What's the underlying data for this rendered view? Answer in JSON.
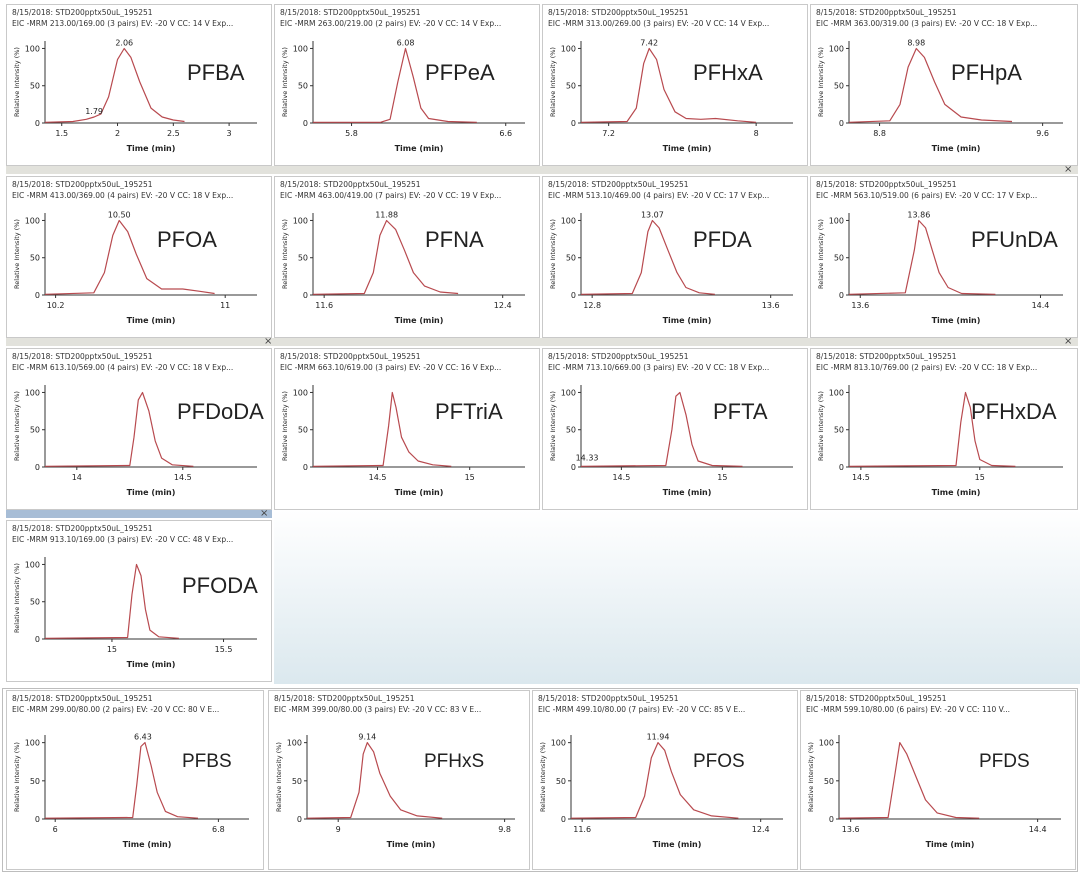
{
  "common": {
    "ylabel": "Relative Intensity (%)",
    "xlabel": "Time (min)",
    "close_symbol": "×",
    "line_color": "#b84a4f",
    "axis_color": "#333333"
  },
  "chart_data": [
    {
      "type": "line",
      "name": "PFBA",
      "title": "8/15/2018: STD200pptx50uL_195251",
      "subtitle": "EIC -MRM 213.00/169.00 (3 pairs) EV: -20 V CC: 14 V Exp...",
      "xlim": [
        1.35,
        3.25
      ],
      "ylim": [
        0,
        110
      ],
      "xticks": [
        "1.5",
        "2",
        "2.5",
        "3"
      ],
      "yticks": [
        "0",
        "50",
        "100"
      ],
      "peaks": [
        {
          "rt": 2.06,
          "label": "2.06",
          "w": 0.16
        },
        {
          "rt": 1.79,
          "label": "1.79",
          "w": 0.1,
          "h": 0.08
        }
      ],
      "x": [
        1.35,
        1.6,
        1.72,
        1.79,
        1.85,
        1.92,
        2.0,
        2.06,
        2.12,
        2.2,
        2.3,
        2.4,
        2.5,
        2.6
      ],
      "values": [
        1,
        2,
        5,
        8,
        12,
        35,
        85,
        100,
        88,
        55,
        20,
        8,
        4,
        2
      ]
    },
    {
      "type": "line",
      "name": "PFPeA",
      "title": "8/15/2018: STD200pptx50uL_195251",
      "subtitle": "EIC -MRM 263.00/219.00 (2 pairs) EV: -20 V CC: 14 V Exp...",
      "xlim": [
        5.6,
        6.7
      ],
      "ylim": [
        0,
        110
      ],
      "xticks": [
        "5.8",
        "6.6"
      ],
      "yticks": [
        "0",
        "50",
        "100"
      ],
      "peaks": [
        {
          "rt": 6.08,
          "label": "6.08"
        }
      ],
      "x": [
        5.6,
        5.95,
        6.0,
        6.04,
        6.08,
        6.12,
        6.16,
        6.2,
        6.3,
        6.45
      ],
      "values": [
        1,
        1,
        5,
        55,
        100,
        62,
        20,
        6,
        2,
        1
      ]
    },
    {
      "type": "line",
      "name": "PFHxA",
      "title": "8/15/2018: STD200pptx50uL_195251",
      "subtitle": "EIC -MRM 313.00/269.00 (3 pairs) EV: -20 V CC: 14 V Exp...",
      "xlim": [
        7.05,
        8.2
      ],
      "ylim": [
        0,
        110
      ],
      "xticks": [
        "7.2",
        "8"
      ],
      "yticks": [
        "0",
        "50",
        "100"
      ],
      "peaks": [
        {
          "rt": 7.42,
          "label": "7.42"
        }
      ],
      "x": [
        7.05,
        7.3,
        7.35,
        7.39,
        7.42,
        7.46,
        7.5,
        7.56,
        7.62,
        7.7,
        7.78,
        7.9,
        8.0
      ],
      "values": [
        1,
        2,
        20,
        80,
        100,
        85,
        45,
        15,
        6,
        5,
        6,
        3,
        1
      ]
    },
    {
      "type": "line",
      "name": "PFHpA",
      "title": "8/15/2018: STD200pptx50uL_195251",
      "subtitle": "EIC -MRM 363.00/319.00 (3 pairs) EV: -20 V CC: 18 V Exp...",
      "xlim": [
        8.65,
        9.7
      ],
      "ylim": [
        0,
        110
      ],
      "xticks": [
        "8.8",
        "9.6"
      ],
      "yticks": [
        "0",
        "50",
        "100"
      ],
      "peaks": [
        {
          "rt": 8.98,
          "label": "8.98"
        }
      ],
      "x": [
        8.65,
        8.85,
        8.9,
        8.94,
        8.98,
        9.02,
        9.07,
        9.12,
        9.2,
        9.3,
        9.45
      ],
      "values": [
        1,
        3,
        25,
        75,
        100,
        88,
        55,
        25,
        8,
        4,
        2
      ]
    },
    {
      "type": "line",
      "name": "PFOA",
      "title": "8/15/2018: STD200pptx50uL_195251",
      "subtitle": "EIC -MRM 413.00/369.00 (4 pairs) EV: -20 V CC: 18 V Exp...",
      "xlim": [
        10.15,
        11.15
      ],
      "ylim": [
        0,
        110
      ],
      "xticks": [
        "10.2",
        "11"
      ],
      "yticks": [
        "0",
        "50",
        "100"
      ],
      "peaks": [
        {
          "rt": 10.5,
          "label": "10.50"
        }
      ],
      "x": [
        10.15,
        10.38,
        10.43,
        10.47,
        10.5,
        10.54,
        10.58,
        10.63,
        10.7,
        10.8,
        10.88,
        10.95
      ],
      "values": [
        1,
        3,
        30,
        80,
        100,
        85,
        55,
        22,
        8,
        8,
        5,
        2
      ]
    },
    {
      "type": "line",
      "name": "PFNA",
      "title": "8/15/2018: STD200pptx50uL_195251",
      "subtitle": "EIC -MRM 463.00/419.00 (7 pairs) EV: -20 V CC: 19 V Exp...",
      "xlim": [
        11.55,
        12.5
      ],
      "ylim": [
        0,
        110
      ],
      "xticks": [
        "11.6",
        "12.4"
      ],
      "yticks": [
        "0",
        "50",
        "100"
      ],
      "peaks": [
        {
          "rt": 11.88,
          "label": "11.88"
        }
      ],
      "x": [
        11.55,
        11.78,
        11.82,
        11.85,
        11.88,
        11.92,
        11.96,
        12.0,
        12.05,
        12.12,
        12.2
      ],
      "values": [
        1,
        2,
        30,
        80,
        100,
        88,
        60,
        30,
        12,
        4,
        2
      ]
    },
    {
      "type": "line",
      "name": "PFDA",
      "title": "8/15/2018: STD200pptx50uL_195251",
      "subtitle": "EIC -MRM 513.10/469.00 (4 pairs) EV: -20 V CC: 17 V Exp...",
      "xlim": [
        12.75,
        13.7
      ],
      "ylim": [
        0,
        110
      ],
      "xticks": [
        "12.8",
        "13.6"
      ],
      "yticks": [
        "0",
        "50",
        "100"
      ],
      "peaks": [
        {
          "rt": 13.07,
          "label": "13.07"
        }
      ],
      "x": [
        12.75,
        12.98,
        13.02,
        13.05,
        13.07,
        13.1,
        13.14,
        13.18,
        13.22,
        13.28,
        13.35
      ],
      "values": [
        1,
        2,
        30,
        85,
        100,
        90,
        60,
        30,
        10,
        3,
        1
      ]
    },
    {
      "type": "line",
      "name": "PFUnDA",
      "title": "8/15/2018: STD200pptx50uL_195251",
      "subtitle": "EIC -MRM 563.10/519.00 (6 pairs) EV: -20 V CC: 17 V Exp...",
      "xlim": [
        13.55,
        14.5
      ],
      "ylim": [
        0,
        110
      ],
      "xticks": [
        "13.6",
        "14.4"
      ],
      "yticks": [
        "0",
        "50",
        "100"
      ],
      "peaks": [
        {
          "rt": 13.86,
          "label": "13.86"
        }
      ],
      "x": [
        13.55,
        13.8,
        13.84,
        13.86,
        13.89,
        13.92,
        13.95,
        13.99,
        14.05,
        14.2
      ],
      "values": [
        1,
        3,
        60,
        100,
        90,
        60,
        30,
        10,
        2,
        1
      ]
    },
    {
      "type": "line",
      "name": "PFDoDA",
      "title": "8/15/2018: STD200pptx50uL_195251",
      "subtitle": "EIC -MRM 613.10/569.00 (4 pairs) EV: -20 V CC: 18 V Exp...",
      "xlim": [
        13.85,
        14.85
      ],
      "ylim": [
        0,
        110
      ],
      "xticks": [
        "14",
        "14.5"
      ],
      "yticks": [
        "0",
        "50",
        "100"
      ],
      "peaks": [
        {
          "rt": 14.3,
          "label": ""
        }
      ],
      "x": [
        13.85,
        14.25,
        14.27,
        14.29,
        14.31,
        14.34,
        14.37,
        14.4,
        14.45,
        14.55
      ],
      "values": [
        1,
        2,
        40,
        90,
        100,
        75,
        35,
        12,
        3,
        1
      ]
    },
    {
      "type": "line",
      "name": "PFTriA",
      "title": "8/15/2018: STD200pptx50uL_195251",
      "subtitle": "EIC -MRM 663.10/619.00 (3 pairs) EV: -20 V CC: 16 V Exp...",
      "xlim": [
        14.15,
        15.3
      ],
      "ylim": [
        0,
        110
      ],
      "xticks": [
        "14.5",
        "15"
      ],
      "yticks": [
        "0",
        "50",
        "100"
      ],
      "peaks": [
        {
          "rt": 14.58,
          "label": ""
        }
      ],
      "x": [
        14.15,
        14.53,
        14.56,
        14.58,
        14.6,
        14.63,
        14.67,
        14.72,
        14.8,
        14.9
      ],
      "values": [
        1,
        2,
        55,
        100,
        80,
        40,
        20,
        8,
        3,
        1
      ]
    },
    {
      "type": "line",
      "name": "PFTA",
      "title": "8/15/2018: STD200pptx50uL_195251",
      "subtitle": "EIC -MRM 713.10/669.00 (3 pairs) EV: -20 V CC: 18 V Exp...",
      "xlim": [
        14.3,
        15.35
      ],
      "ylim": [
        0,
        110
      ],
      "xticks": [
        "14.5",
        "15"
      ],
      "yticks": [
        "0",
        "50",
        "100"
      ],
      "peaks": [
        {
          "rt": 14.78,
          "label": ""
        },
        {
          "rt": 14.33,
          "label": "14.33",
          "h": 0.05
        }
      ],
      "x": [
        14.3,
        14.72,
        14.75,
        14.77,
        14.79,
        14.82,
        14.85,
        14.88,
        14.95,
        15.1
      ],
      "values": [
        1,
        2,
        50,
        95,
        100,
        70,
        30,
        8,
        2,
        1
      ]
    },
    {
      "type": "line",
      "name": "PFHxDA",
      "title": "8/15/2018: STD200pptx50uL_195251",
      "subtitle": "EIC -MRM 813.10/769.00 (2 pairs) EV: -20 V CC: 18 V Exp...",
      "xlim": [
        14.45,
        15.35
      ],
      "ylim": [
        0,
        110
      ],
      "xticks": [
        "14.5",
        "15"
      ],
      "yticks": [
        "0",
        "50",
        "100"
      ],
      "peaks": [
        {
          "rt": 14.93,
          "label": ""
        }
      ],
      "x": [
        14.45,
        14.9,
        14.92,
        14.94,
        14.96,
        14.98,
        15.0,
        15.05,
        15.15
      ],
      "values": [
        1,
        2,
        60,
        100,
        80,
        35,
        10,
        2,
        1
      ]
    },
    {
      "type": "line",
      "name": "PFODA",
      "title": "8/15/2018: STD200pptx50uL_195251",
      "subtitle": "EIC -MRM 913.10/169.00 (3 pairs) EV: -20 V CC: 48 V Exp...",
      "xlim": [
        14.7,
        15.65
      ],
      "ylim": [
        0,
        110
      ],
      "xticks": [
        "15",
        "15.5"
      ],
      "yticks": [
        "0",
        "50",
        "100"
      ],
      "peaks": [
        {
          "rt": 15.11,
          "label": ""
        }
      ],
      "x": [
        14.7,
        15.07,
        15.09,
        15.11,
        15.13,
        15.15,
        15.17,
        15.21,
        15.3
      ],
      "values": [
        1,
        2,
        60,
        100,
        85,
        40,
        12,
        3,
        1
      ]
    },
    {
      "type": "line",
      "name": "PFBS",
      "title": "8/15/2018: STD200pptx50uL_195251",
      "subtitle": "EIC -MRM 299.00/80.00 (2 pairs) EV: -20 V CC: 80 V E...",
      "xlim": [
        5.95,
        6.95
      ],
      "ylim": [
        0,
        110
      ],
      "xticks": [
        "6",
        "6.8"
      ],
      "yticks": [
        "0",
        "50",
        "100"
      ],
      "peaks": [
        {
          "rt": 6.43,
          "label": "6.43"
        }
      ],
      "x": [
        5.95,
        6.38,
        6.4,
        6.42,
        6.44,
        6.47,
        6.5,
        6.54,
        6.6,
        6.7
      ],
      "values": [
        1,
        2,
        45,
        95,
        100,
        70,
        35,
        10,
        3,
        1
      ]
    },
    {
      "type": "line",
      "name": "PFHxS",
      "title": "8/15/2018: STD200pptx50uL_195251",
      "subtitle": "EIC -MRM 399.00/80.00 (3 pairs) EV: -20 V CC: 83 V E...",
      "xlim": [
        8.85,
        9.85
      ],
      "ylim": [
        0,
        110
      ],
      "xticks": [
        "9",
        "9.8"
      ],
      "yticks": [
        "0",
        "50",
        "100"
      ],
      "peaks": [
        {
          "rt": 9.14,
          "label": "9.14"
        }
      ],
      "x": [
        8.85,
        9.06,
        9.1,
        9.12,
        9.14,
        9.17,
        9.2,
        9.25,
        9.3,
        9.38,
        9.5
      ],
      "values": [
        1,
        2,
        35,
        85,
        100,
        88,
        60,
        30,
        12,
        4,
        1
      ]
    },
    {
      "type": "line",
      "name": "PFOS",
      "title": "8/15/2018: STD200pptx50uL_195251",
      "subtitle": "EIC -MRM 499.10/80.00 (7 pairs) EV: -20 V CC: 85 V E...",
      "xlim": [
        11.55,
        12.5
      ],
      "ylim": [
        0,
        110
      ],
      "xticks": [
        "11.6",
        "12.4"
      ],
      "yticks": [
        "0",
        "50",
        "100"
      ],
      "peaks": [
        {
          "rt": 11.94,
          "label": "11.94"
        }
      ],
      "x": [
        11.55,
        11.84,
        11.88,
        11.91,
        11.94,
        11.97,
        12.0,
        12.04,
        12.1,
        12.18,
        12.3
      ],
      "values": [
        1,
        2,
        30,
        80,
        100,
        90,
        62,
        32,
        12,
        4,
        1
      ]
    },
    {
      "type": "line",
      "name": "PFDS",
      "title": "8/15/2018: STD200pptx50uL_195251",
      "subtitle": "EIC -MRM 599.10/80.00 (6 pairs) EV: -20 V CC: 110 V...",
      "xlim": [
        13.55,
        14.5
      ],
      "ylim": [
        0,
        110
      ],
      "xticks": [
        "13.6",
        "14.4"
      ],
      "yticks": [
        "0",
        "50",
        "100"
      ],
      "peaks": [
        {
          "rt": 13.81,
          "label": ""
        }
      ],
      "x": [
        13.55,
        13.76,
        13.79,
        13.81,
        13.84,
        13.88,
        13.92,
        13.97,
        14.05,
        14.15
      ],
      "values": [
        1,
        2,
        60,
        100,
        85,
        55,
        25,
        8,
        2,
        1
      ]
    }
  ]
}
